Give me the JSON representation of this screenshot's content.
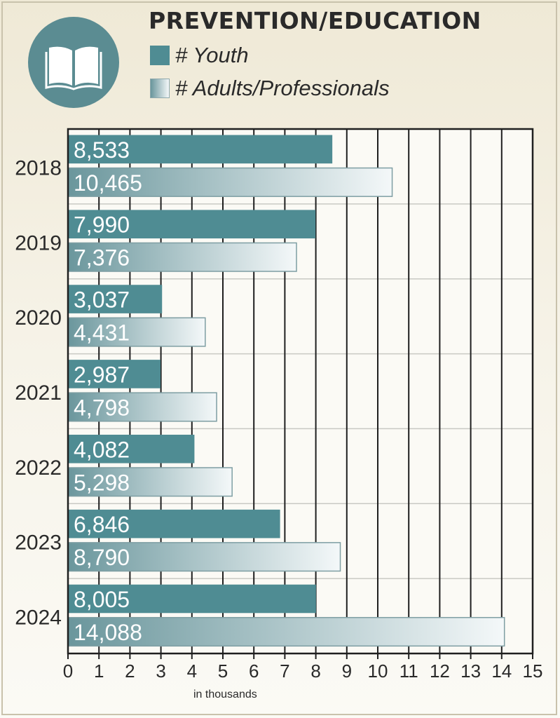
{
  "chart_data": {
    "type": "bar",
    "orientation": "horizontal",
    "title": "PREVENTION/EDUCATION",
    "xlabel": "in thousands",
    "ylabel": "",
    "categories": [
      "2018",
      "2019",
      "2020",
      "2021",
      "2022",
      "2023",
      "2024"
    ],
    "series": [
      {
        "name": "# Youth",
        "values": [
          8533,
          7990,
          3037,
          2987,
          4082,
          6846,
          8005
        ],
        "labels": [
          "8,533",
          "7,990",
          "3,037",
          "2,987",
          "4,082",
          "6,846",
          "8,005"
        ],
        "color": "#4f8c93"
      },
      {
        "name": "# Adults/Professionals",
        "values": [
          10465,
          7376,
          4431,
          4798,
          5298,
          8790,
          14088
        ],
        "labels": [
          "10,465",
          "7,376",
          "4,431",
          "4,798",
          "5,298",
          "8,790",
          "14,088"
        ],
        "color_start": "#6a969c",
        "color_end": "#f4f8f9"
      }
    ],
    "xlim": [
      0,
      15
    ],
    "xticks": [
      "0",
      "1",
      "2",
      "3",
      "4",
      "5",
      "6",
      "7",
      "8",
      "9",
      "10",
      "11",
      "12",
      "13",
      "14",
      "15"
    ],
    "grid": true,
    "legend_position": "top"
  },
  "icon": "open-book-icon",
  "colors": {
    "badge": "#5b8c92",
    "youth": "#4f8c93",
    "text": "#2a2a2a"
  }
}
